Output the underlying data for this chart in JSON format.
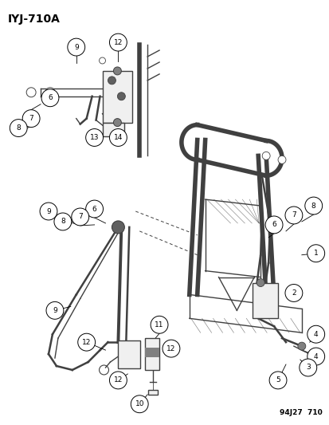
{
  "title": "IYJ-710A",
  "footer": "94J27  710",
  "bg_color": "#ffffff",
  "text_color": "#000000",
  "lc": "#404040",
  "title_fontsize": 10,
  "footer_fontsize": 6.5,
  "callout_r": 0.028,
  "callout_fs": 6.5
}
